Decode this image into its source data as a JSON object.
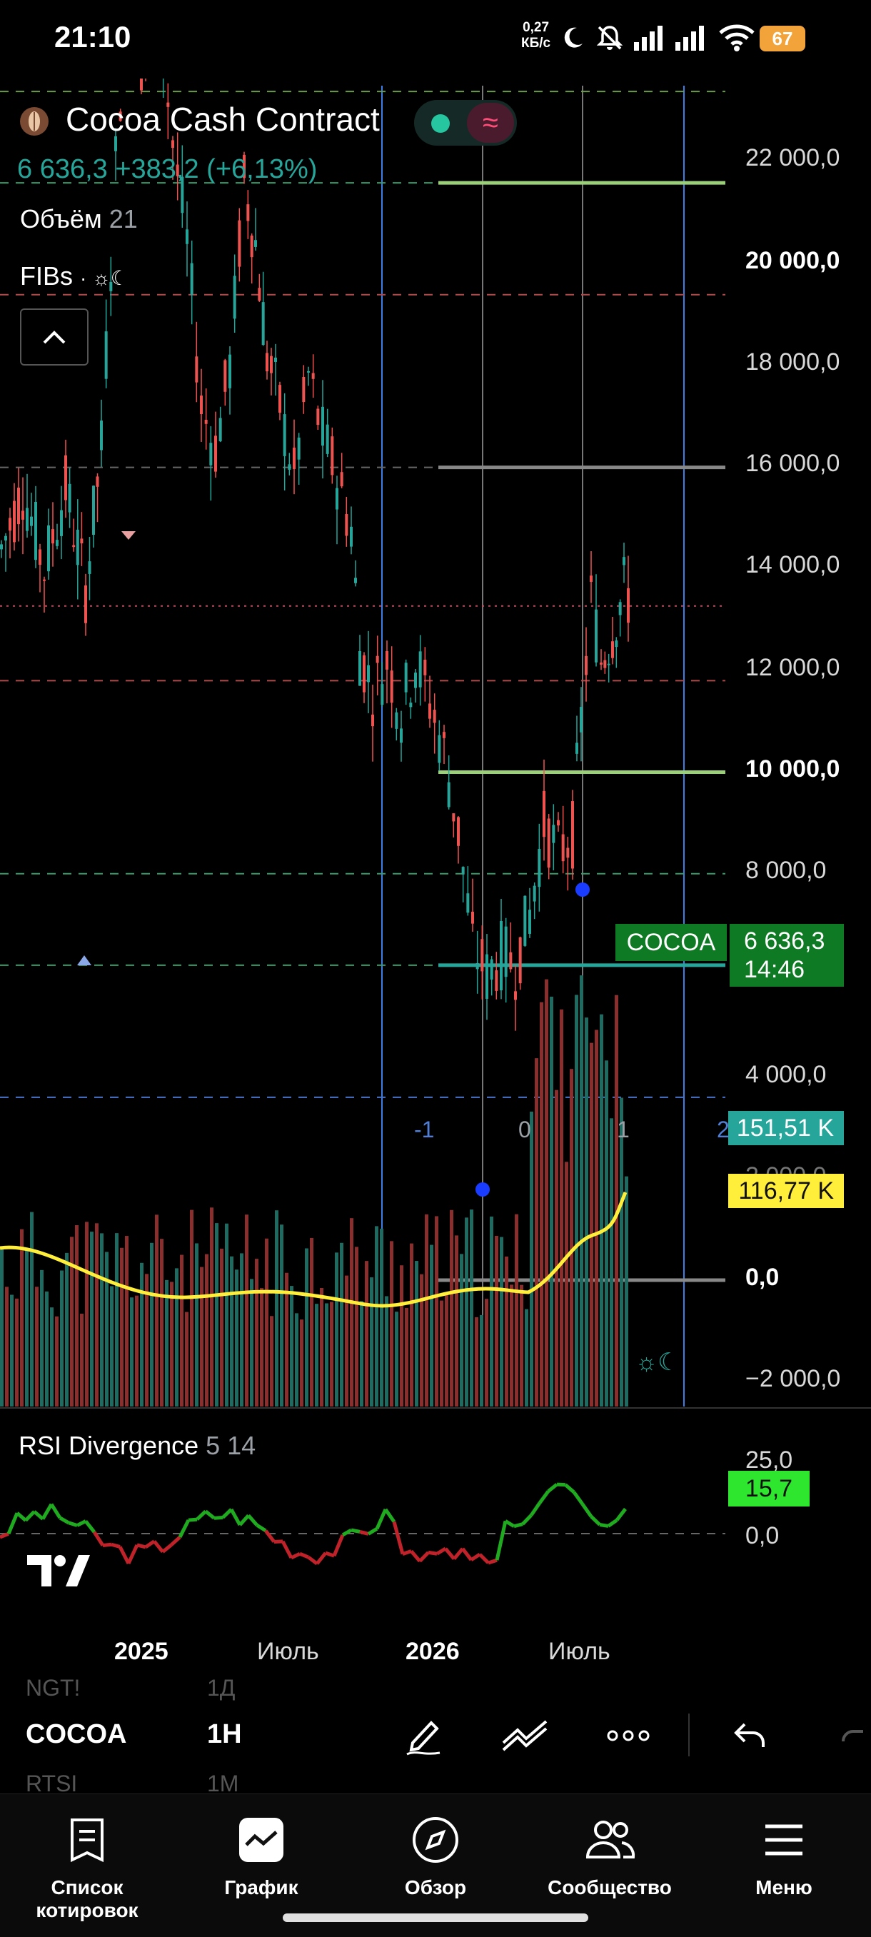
{
  "status_bar": {
    "time": "21:10",
    "net_speed_value": "0,27",
    "net_speed_unit": "КБ/с",
    "battery": "67",
    "icons": [
      "moon-icon",
      "notifications-off-icon",
      "signal-icon",
      "signal-icon",
      "wifi-icon",
      "battery-icon"
    ]
  },
  "header": {
    "symbol_name": "Cocoa Cash Contract",
    "price_change_line": "6 636,3  +383,2 (+6,13%)",
    "volume_label": "Объём",
    "volume_value": "21",
    "indicator_label": "FIBs",
    "indicator_suffix": "· ☼☾",
    "collapse_glyph": "^",
    "pill_wave_glyph": "≈"
  },
  "price_scale": [
    "22 000,0",
    "20 000,0",
    "18 000,0",
    "16 000,0",
    "14 000,0",
    "12 000,0",
    "10 000,0",
    "8 000,0",
    "4 000,0",
    "2 000,0",
    "0,0",
    "−2 000,0"
  ],
  "tags": {
    "symbol": "COCOA",
    "last_price": "6 636,3",
    "countdown": "14:46",
    "volume_ma": "151,51 K",
    "volume_ma2": "116,77 K"
  },
  "fib_time_labels": [
    "-1",
    "0",
    "1",
    "2"
  ],
  "rsi": {
    "label": "RSI Divergence",
    "params": "5 14",
    "scale": [
      "25,0",
      "0,0"
    ],
    "value": "15,7"
  },
  "time_axis": [
    {
      "label": "2025",
      "bold": true
    },
    {
      "label": "Июль",
      "bold": false
    },
    {
      "label": "2026",
      "bold": true
    },
    {
      "label": "Июль",
      "bold": false
    }
  ],
  "symbol_bar": {
    "prev_symbol": "NGT!",
    "prev_interval": "1Д",
    "current_symbol": "COCOA",
    "current_interval": "1H",
    "next_symbol": "RTSI",
    "next_interval": "1M"
  },
  "bottom_nav": [
    {
      "label": "Список котировок",
      "icon": "watchlist-icon"
    },
    {
      "label": "График",
      "icon": "chart-icon"
    },
    {
      "label": "Обзор",
      "icon": "compass-icon"
    },
    {
      "label": "Сообщество",
      "icon": "community-icon"
    },
    {
      "label": "Меню",
      "icon": "menu-icon"
    }
  ],
  "colors": {
    "up": "#26a69a",
    "down": "#ef5350",
    "volume_ma": "#ffee3a",
    "rsi_up": "#1faa1f",
    "rsi_down": "#c0222a",
    "vertical_line": "#3d7ee6",
    "last_price": "#0f7a24"
  }
}
